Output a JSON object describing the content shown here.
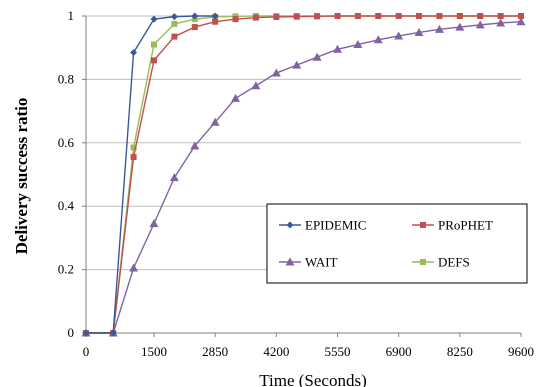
{
  "chart_data": {
    "type": "line",
    "xlabel": "Time (Seconds)",
    "ylabel": "Delivery success ratio",
    "xlim": [
      0,
      9600
    ],
    "ylim": [
      0,
      1
    ],
    "x_ticks": [
      0,
      1500,
      2850,
      4200,
      5550,
      6900,
      8250,
      9600
    ],
    "x_tick_labels": [
      "0",
      "1500",
      "2850",
      "4200",
      "5550",
      "6900",
      "8250",
      "9600"
    ],
    "y_ticks": [
      0,
      0.2,
      0.4,
      0.6,
      0.8,
      1
    ],
    "y_tick_labels": [
      "0",
      "0.2",
      "0.4",
      "0.6",
      "0.8",
      "1"
    ],
    "grid": "horizontal",
    "legend_position": "bottom-right",
    "series": [
      {
        "name": "EPIDEMIC",
        "color": "#3b5998",
        "marker": "diamond",
        "x": [
          0,
          600,
          1050,
          1500,
          1950,
          2400,
          2850
        ],
        "y": [
          0,
          0,
          0.885,
          0.99,
          0.998,
          1.0,
          1.0
        ]
      },
      {
        "name": "PRoPHET",
        "color": "#c0504d",
        "marker": "square",
        "x": [
          0,
          600,
          1050,
          1500,
          1950,
          2400,
          2850,
          3300,
          3750,
          4200,
          4650,
          5100,
          5550,
          6000,
          6450,
          6900,
          7350,
          7800,
          8250,
          8700,
          9150,
          9600
        ],
        "y": [
          0,
          0,
          0.555,
          0.86,
          0.935,
          0.965,
          0.982,
          0.99,
          0.995,
          0.997,
          0.998,
          0.999,
          1.0,
          1.0,
          1.0,
          1.0,
          1.0,
          1.0,
          1.0,
          1.0,
          1.0,
          1.0
        ]
      },
      {
        "name": "WAIT",
        "color": "#8064a2",
        "marker": "triangle",
        "x": [
          0,
          600,
          1050,
          1500,
          1950,
          2400,
          2850,
          3300,
          3750,
          4200,
          4650,
          5100,
          5550,
          6000,
          6450,
          6900,
          7350,
          7800,
          8250,
          8700,
          9150,
          9600
        ],
        "y": [
          0,
          0,
          0.205,
          0.345,
          0.49,
          0.59,
          0.665,
          0.74,
          0.78,
          0.82,
          0.845,
          0.87,
          0.895,
          0.91,
          0.925,
          0.937,
          0.948,
          0.958,
          0.965,
          0.972,
          0.978,
          0.982
        ]
      },
      {
        "name": "DEFS",
        "color": "#9bbb59",
        "marker": "square",
        "x": [
          0,
          600,
          1050,
          1500,
          1950,
          2400,
          2850,
          3300,
          3750,
          4200,
          4650,
          5100,
          5550,
          6000,
          6450,
          6900,
          7350,
          7800,
          8250,
          8700,
          9150,
          9600
        ],
        "y": [
          0,
          0,
          0.585,
          0.91,
          0.975,
          0.99,
          0.997,
          0.999,
          1.0,
          1.0,
          1.0,
          1.0,
          1.0,
          1.0,
          1.0,
          1.0,
          1.0,
          1.0,
          1.0,
          1.0,
          1.0,
          1.0
        ]
      }
    ]
  }
}
